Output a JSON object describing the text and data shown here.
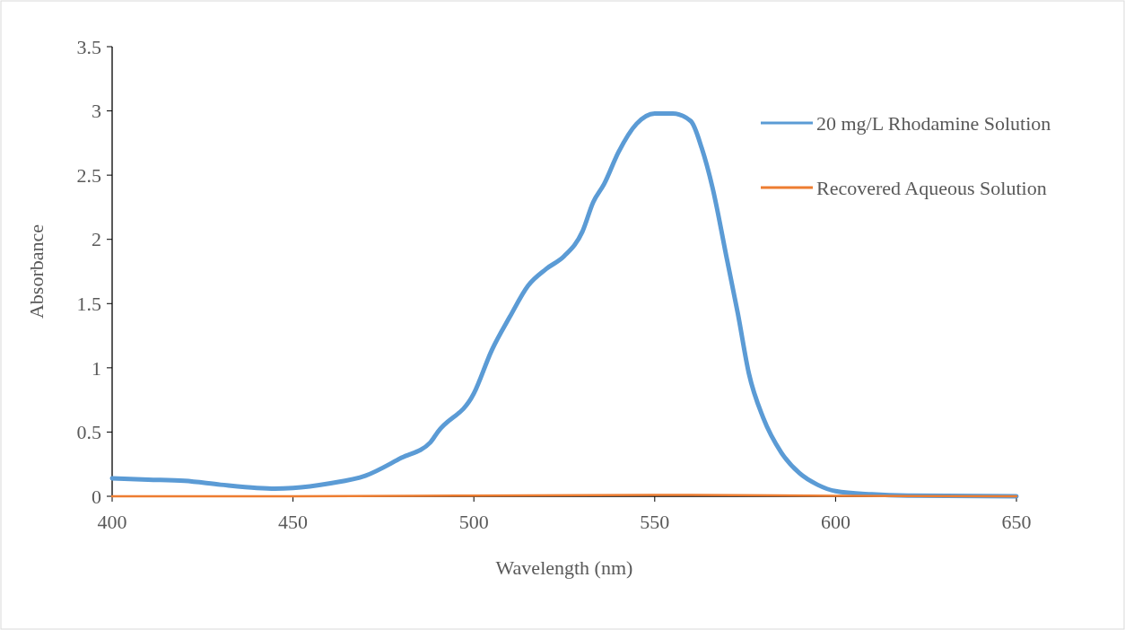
{
  "chart_data": {
    "type": "line",
    "xlabel": "Wavelength (nm)",
    "ylabel": "Absorbance",
    "xlim": [
      400,
      650
    ],
    "ylim": [
      0,
      3.5
    ],
    "xticks": [
      400,
      450,
      500,
      550,
      600,
      650
    ],
    "yticks": [
      0,
      0.5,
      1,
      1.5,
      2,
      2.5,
      3,
      3.5
    ],
    "grid": false,
    "legend": "right",
    "marker": "none",
    "line_style": "solid",
    "series": [
      {
        "name": "20 mg/L Rhodamine Solution",
        "color": "#5b9bd5",
        "x": [
          400,
          410,
          420,
          430,
          440,
          445,
          450,
          460,
          470,
          480,
          488,
          490,
          500,
          505,
          510,
          515,
          520,
          525,
          530,
          533,
          536,
          540,
          545,
          550,
          555,
          560,
          563,
          566,
          570,
          573,
          576,
          580,
          585,
          590,
          595,
          600,
          610,
          620,
          650
        ],
        "values": [
          0.14,
          0.13,
          0.12,
          0.09,
          0.065,
          0.06,
          0.065,
          0.1,
          0.16,
          0.3,
          0.42,
          0.5,
          0.8,
          1.14,
          1.4,
          1.64,
          1.77,
          1.87,
          2.06,
          2.29,
          2.43,
          2.68,
          2.9,
          2.98,
          2.98,
          2.92,
          2.71,
          2.4,
          1.84,
          1.42,
          0.96,
          0.61,
          0.34,
          0.18,
          0.09,
          0.04,
          0.015,
          0.005,
          0
        ]
      },
      {
        "name": "Recovered Aqueous Solution",
        "color": "#ed7d31",
        "x": [
          400,
          450,
          500,
          550,
          560,
          600,
          650
        ],
        "values": [
          0,
          0,
          0.005,
          0.01,
          0.01,
          0.003,
          0
        ]
      }
    ]
  }
}
